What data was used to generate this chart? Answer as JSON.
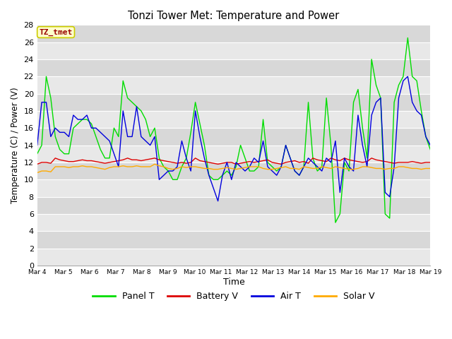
{
  "title": "Tonzi Tower Met: Temperature and Power",
  "xlabel": "Time",
  "ylabel": "Temperature (C) / Power (V)",
  "ylim": [
    0,
    28
  ],
  "yticks": [
    0,
    2,
    4,
    6,
    8,
    10,
    12,
    14,
    16,
    18,
    20,
    22,
    24,
    26,
    28
  ],
  "xtick_labels": [
    "Mar 4",
    "Mar 5",
    "Mar 6",
    "Mar 7",
    "Mar 8",
    "Mar 9",
    "Mar 10",
    "Mar 11",
    "Mar 12",
    "Mar 13",
    "Mar 14",
    "Mar 15",
    "Mar 16",
    "Mar 17",
    "Mar 18",
    "Mar 19"
  ],
  "legend_labels": [
    "Panel T",
    "Battery V",
    "Air T",
    "Solar V"
  ],
  "legend_colors": [
    "#00dd00",
    "#dd0000",
    "#0000dd",
    "#ffaa00"
  ],
  "watermark_text": "TZ_tmet",
  "watermark_color": "#990000",
  "watermark_bg": "#ffffcc",
  "watermark_border": "#cccc00",
  "bg_color_light": "#e8e8e8",
  "bg_color_dark": "#d8d8d8",
  "band_color_light": "#e8e8e8",
  "band_color_dark": "#d8d8d8",
  "panel_T": [
    13.0,
    14.0,
    22.0,
    19.5,
    15.0,
    13.5,
    13.0,
    13.0,
    16.0,
    16.5,
    17.0,
    17.0,
    16.5,
    15.0,
    13.5,
    12.5,
    12.5,
    16.0,
    15.0,
    21.5,
    19.5,
    19.0,
    18.5,
    18.0,
    17.0,
    15.0,
    16.0,
    12.5,
    11.5,
    11.0,
    10.0,
    10.0,
    11.5,
    12.5,
    15.5,
    19.0,
    16.5,
    14.0,
    10.5,
    10.0,
    10.0,
    10.5,
    11.0,
    10.5,
    11.5,
    14.0,
    12.5,
    11.0,
    11.0,
    11.5,
    17.0,
    12.0,
    11.5,
    11.0,
    11.5,
    14.0,
    12.5,
    11.0,
    10.5,
    11.5,
    19.0,
    12.5,
    11.0,
    11.5,
    19.5,
    14.0,
    5.0,
    6.0,
    12.0,
    11.0,
    19.0,
    20.5,
    16.0,
    12.5,
    24.0,
    21.0,
    19.5,
    6.0,
    5.5,
    19.0,
    21.0,
    22.0,
    26.5,
    22.0,
    21.5,
    18.0,
    15.0,
    13.5
  ],
  "battery_V": [
    11.8,
    12.0,
    12.0,
    11.9,
    12.5,
    12.3,
    12.2,
    12.1,
    12.1,
    12.2,
    12.3,
    12.2,
    12.2,
    12.1,
    12.0,
    11.9,
    12.0,
    12.1,
    12.2,
    12.3,
    12.5,
    12.3,
    12.3,
    12.2,
    12.3,
    12.4,
    12.5,
    12.3,
    12.2,
    12.1,
    12.0,
    11.9,
    12.0,
    11.9,
    12.0,
    12.5,
    12.2,
    12.1,
    12.0,
    11.9,
    11.8,
    11.9,
    12.0,
    12.0,
    11.8,
    11.9,
    12.0,
    12.1,
    12.0,
    12.1,
    12.2,
    12.3,
    12.0,
    11.9,
    11.8,
    12.0,
    12.1,
    12.2,
    12.0,
    12.1,
    11.9,
    12.5,
    12.3,
    12.2,
    12.1,
    12.5,
    12.3,
    12.2,
    12.5,
    12.3,
    12.2,
    12.1,
    12.0,
    12.1,
    12.5,
    12.3,
    12.2,
    12.1,
    12.0,
    11.9,
    12.0,
    12.0,
    12.0,
    12.1,
    12.0,
    11.9,
    12.0,
    12.0
  ],
  "air_T": [
    14.0,
    19.0,
    19.0,
    15.0,
    16.0,
    15.5,
    15.5,
    15.0,
    17.5,
    17.0,
    17.0,
    17.5,
    16.0,
    16.0,
    15.5,
    15.0,
    14.5,
    13.0,
    11.5,
    18.0,
    15.0,
    15.0,
    18.5,
    15.0,
    14.5,
    14.0,
    15.0,
    10.0,
    10.5,
    11.0,
    11.0,
    11.5,
    14.5,
    12.5,
    11.0,
    18.0,
    15.0,
    12.5,
    10.5,
    9.0,
    7.5,
    10.5,
    12.0,
    10.0,
    12.0,
    11.5,
    11.0,
    11.5,
    12.5,
    12.0,
    14.5,
    11.5,
    11.0,
    10.5,
    11.5,
    14.0,
    12.5,
    11.0,
    10.5,
    11.5,
    12.5,
    12.0,
    11.5,
    11.0,
    12.5,
    12.0,
    14.5,
    8.5,
    12.5,
    11.5,
    11.0,
    17.5,
    14.0,
    11.5,
    17.5,
    19.0,
    19.5,
    8.5,
    8.0,
    11.5,
    19.5,
    21.5,
    22.0,
    19.0,
    18.0,
    17.5,
    15.0,
    14.0
  ],
  "solar_V": [
    10.8,
    11.0,
    11.0,
    10.9,
    11.5,
    11.5,
    11.5,
    11.4,
    11.5,
    11.5,
    11.6,
    11.5,
    11.5,
    11.4,
    11.3,
    11.2,
    11.4,
    11.5,
    11.5,
    11.6,
    11.5,
    11.5,
    11.6,
    11.5,
    11.5,
    11.5,
    11.8,
    11.6,
    11.5,
    11.3,
    11.2,
    11.3,
    11.5,
    11.4,
    11.5,
    11.5,
    11.4,
    11.3,
    11.3,
    11.2,
    11.2,
    11.3,
    11.4,
    11.3,
    11.2,
    11.3,
    11.4,
    11.5,
    11.5,
    11.5,
    11.3,
    11.2,
    11.2,
    11.3,
    11.4,
    11.5,
    11.3,
    11.3,
    11.2,
    11.5,
    11.4,
    11.3,
    11.3,
    11.5,
    11.4,
    11.3,
    11.5,
    11.4,
    11.3,
    11.2,
    11.2,
    11.3,
    11.5,
    11.5,
    11.4,
    11.3,
    11.3,
    11.2,
    11.3,
    11.3,
    11.5,
    11.5,
    11.4,
    11.3,
    11.3,
    11.2,
    11.3,
    11.3
  ]
}
